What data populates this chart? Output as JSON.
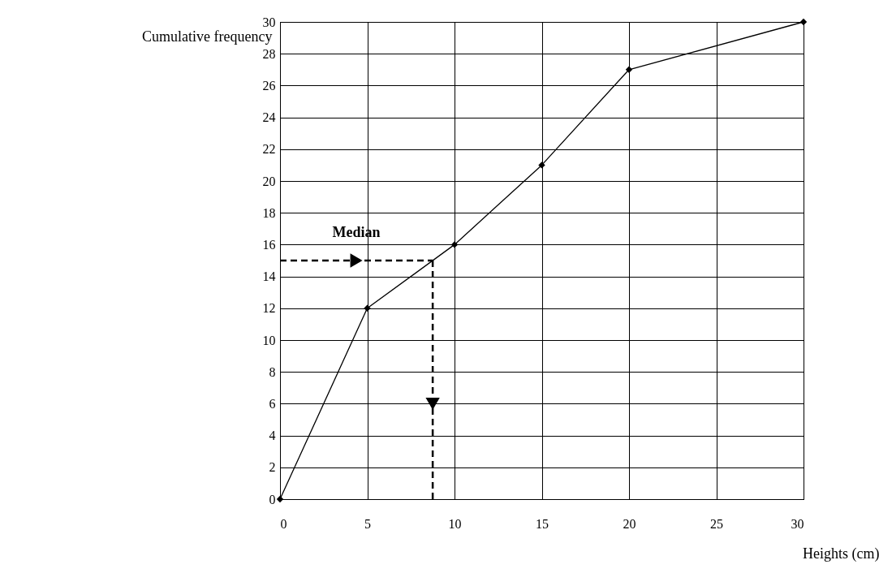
{
  "chart_data": {
    "type": "line",
    "xlabel": "Heights (cm)",
    "ylabel": "Cumulative frequency",
    "x": [
      0,
      5,
      10,
      15,
      20,
      30
    ],
    "series": [
      {
        "color": "#000000",
        "values": [
          0,
          12,
          16,
          21,
          27,
          30
        ]
      }
    ],
    "xlim": [
      0,
      30
    ],
    "ylim": [
      0,
      30
    ],
    "xticks": [
      0,
      5,
      10,
      15,
      20,
      25,
      30
    ],
    "yticks": [
      0,
      2,
      4,
      6,
      8,
      10,
      12,
      14,
      16,
      18,
      20,
      22,
      24,
      26,
      28,
      30
    ],
    "grid": true,
    "marker": "diamond",
    "line_style": "solid",
    "ref_lines": [
      {
        "axis": "y",
        "value": 15,
        "label": "Median",
        "line_style": "dashed",
        "color": "#000000"
      },
      {
        "axis": "x",
        "value": 8.75,
        "line_style": "dashed",
        "color": "#000000"
      }
    ]
  }
}
